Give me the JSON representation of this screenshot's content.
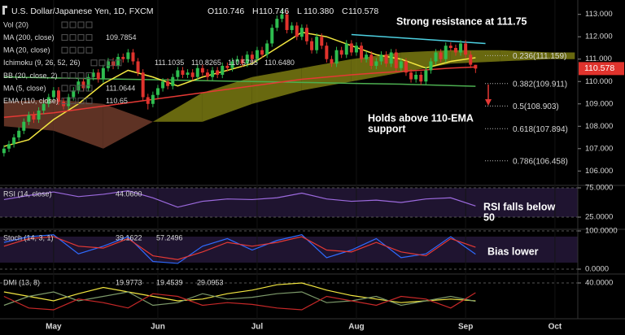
{
  "chart_data": [
    {
      "type": "candlestick",
      "title": "U.S. Dollar/Japanese Yen, 1D, FXCM",
      "ohlc_labels": [
        "O",
        "H",
        "L",
        "C"
      ],
      "last_bar_labels": [
        "110.746",
        "110.746",
        "110.380",
        "110.578"
      ],
      "up_color": "#2ebd4f",
      "down_color": "#e0332d",
      "open": [
        106.8,
        107.0,
        107.2,
        107.5,
        107.8,
        108.2,
        108.5,
        108.3,
        108.7,
        109.0,
        109.3,
        109.6,
        109.1,
        108.9,
        109.3,
        109.6,
        110.0,
        109.7,
        110.2,
        110.4,
        110.1,
        110.6,
        110.9,
        110.7,
        111.1,
        111.0,
        111.3,
        110.9,
        110.4,
        109.3,
        109.0,
        109.4,
        109.7,
        110.0,
        109.8,
        110.2,
        110.5,
        110.3,
        110.4,
        110.2,
        110.6,
        110.4,
        110.2,
        110.5,
        110.3,
        110.7,
        110.6,
        110.9,
        111.0,
        110.8,
        111.2,
        111.0,
        111.4,
        111.2,
        111.7,
        112.4,
        112.8,
        113.0,
        112.3,
        112.5,
        112.0,
        112.4,
        111.8,
        111.4,
        112.0,
        111.6,
        111.0,
        110.8,
        111.4,
        111.2,
        111.7,
        111.3,
        111.6,
        111.0,
        111.2,
        110.7,
        110.9,
        111.2,
        110.8,
        111.3,
        110.6,
        110.9,
        110.4,
        110.1,
        110.3,
        110.0,
        110.5,
        110.9,
        111.3,
        111.0,
        111.6,
        111.5,
        111.3,
        111.7,
        111.2,
        110.746
      ],
      "high": [
        107.15,
        107.35,
        107.65,
        107.95,
        108.35,
        108.65,
        108.65,
        108.85,
        109.15,
        109.45,
        109.75,
        109.75,
        109.25,
        109.45,
        109.75,
        110.15,
        110.15,
        110.35,
        110.55,
        110.55,
        110.75,
        111.05,
        111.05,
        111.25,
        111.25,
        111.45,
        111.45,
        111.05,
        110.55,
        109.45,
        109.55,
        109.85,
        110.15,
        110.15,
        110.35,
        110.65,
        110.65,
        110.55,
        110.55,
        110.75,
        110.75,
        110.55,
        110.65,
        110.65,
        110.85,
        110.85,
        111.05,
        111.15,
        111.15,
        111.35,
        111.35,
        111.55,
        111.55,
        111.85,
        112.55,
        112.95,
        113.2,
        113.15,
        112.65,
        112.65,
        112.55,
        112.55,
        111.95,
        112.15,
        112.15,
        111.75,
        111.15,
        111.55,
        111.55,
        111.85,
        111.85,
        111.75,
        111.75,
        111.35,
        111.35,
        111.05,
        111.35,
        111.35,
        111.45,
        111.45,
        111.05,
        111.05,
        110.55,
        110.45,
        110.45,
        110.65,
        111.05,
        111.45,
        111.45,
        111.75,
        111.75,
        111.65,
        111.85,
        111.85,
        111.35,
        110.746
      ],
      "low": [
        106.65,
        106.85,
        107.05,
        107.35,
        107.65,
        108.05,
        108.15,
        108.15,
        108.55,
        108.85,
        109.15,
        108.95,
        108.75,
        108.75,
        109.15,
        109.45,
        109.55,
        109.55,
        110.05,
        109.95,
        109.95,
        110.45,
        110.55,
        110.55,
        110.85,
        110.85,
        110.75,
        110.25,
        109.15,
        108.75,
        108.85,
        109.25,
        109.55,
        109.65,
        109.65,
        110.05,
        110.15,
        110.15,
        110.05,
        110.05,
        110.25,
        110.05,
        110.05,
        110.15,
        110.15,
        110.45,
        110.45,
        110.75,
        110.65,
        110.65,
        110.85,
        110.85,
        111.05,
        111.05,
        111.55,
        112.25,
        112.65,
        112.15,
        112.15,
        111.85,
        111.85,
        111.65,
        111.25,
        111.25,
        111.45,
        110.85,
        110.65,
        110.65,
        111.05,
        111.05,
        111.15,
        111.15,
        110.85,
        110.85,
        110.55,
        110.55,
        110.75,
        110.65,
        110.65,
        110.45,
        110.45,
        110.25,
        109.95,
        109.95,
        109.85,
        109.85,
        110.35,
        110.75,
        110.85,
        110.85,
        111.35,
        111.15,
        111.15,
        111.05,
        110.6,
        110.38
      ],
      "close": [
        107.0,
        107.2,
        107.5,
        107.8,
        108.2,
        108.5,
        108.3,
        108.7,
        109.0,
        109.3,
        109.6,
        109.1,
        108.9,
        109.3,
        109.6,
        110.0,
        109.7,
        110.2,
        110.4,
        110.1,
        110.6,
        110.9,
        110.7,
        111.1,
        111.0,
        111.3,
        110.9,
        110.4,
        109.3,
        109.0,
        109.4,
        109.7,
        110.0,
        109.8,
        110.2,
        110.5,
        110.3,
        110.4,
        110.2,
        110.6,
        110.4,
        110.2,
        110.5,
        110.3,
        110.7,
        110.6,
        110.9,
        111.0,
        110.8,
        111.2,
        111.0,
        111.4,
        111.2,
        111.7,
        112.4,
        112.8,
        113.0,
        112.3,
        112.5,
        112.0,
        112.4,
        111.8,
        111.4,
        112.0,
        111.6,
        111.0,
        110.8,
        111.4,
        111.2,
        111.7,
        111.3,
        111.6,
        111.0,
        111.2,
        110.7,
        110.9,
        111.2,
        110.8,
        111.3,
        110.6,
        110.9,
        110.4,
        110.1,
        110.3,
        110.0,
        110.5,
        110.9,
        111.3,
        111.0,
        111.6,
        111.5,
        111.3,
        111.7,
        111.2,
        110.75,
        110.578
      ],
      "xlim": [
        -0.8,
        115.6
      ],
      "xticks": [
        {
          "value": 10,
          "label": "May"
        },
        {
          "value": 31,
          "label": "Jun"
        },
        {
          "value": 51,
          "label": "Jul"
        },
        {
          "value": 71,
          "label": "Aug"
        },
        {
          "value": 93,
          "label": "Sep"
        },
        {
          "value": 111,
          "label": "Oct"
        }
      ],
      "ylim": [
        105.43,
        113.57
      ],
      "yticks": [
        {
          "value": 113,
          "label": "113.000"
        },
        {
          "value": 112,
          "label": "112.000"
        },
        {
          "value": 111,
          "label": "111.000"
        },
        {
          "value": 110,
          "label": "110.000"
        },
        {
          "value": 109,
          "label": "109.000"
        },
        {
          "value": 108,
          "label": "108.000"
        },
        {
          "value": 107,
          "label": "107.000"
        },
        {
          "value": 106,
          "label": "106.000"
        }
      ],
      "legend_rows": [
        {
          "name": "Vol (20)"
        },
        {
          "name": "MA (200, close)",
          "line": {
            "color": "#4caf50",
            "x": [
              0,
              5,
              10,
              15,
              20,
              25,
              30,
              35,
              40,
              45,
              50,
              55,
              60,
              65,
              70,
              75,
              80,
              85,
              90,
              95
            ],
            "values": [
              110.2,
              110.18,
              110.16,
              110.14,
              110.12,
              110.1,
              110.08,
              110.06,
              110.04,
              110.02,
              110.0,
              109.98,
              109.96,
              109.94,
              109.92,
              109.9,
              109.88,
              109.85,
              109.82,
              109.7854
            ]
          }
        },
        {
          "name": "MA (20, close)"
        },
        {
          "name": "Ichimoku (9, 26, 52, 26)",
          "labels": [
            {
              "text": "111.1035",
              "color": "#2196f3"
            },
            {
              "text": "110.8265",
              "color": "#e57373"
            },
            {
              "text": "110.5785",
              "color": "#81c784"
            },
            {
              "text": "110.6480",
              "color": "#e57373"
            }
          ],
          "cloud": {
            "x": [
              0,
              10,
              20,
              30,
              40,
              50,
              60,
              70,
              80,
              90,
              100,
              110,
              115
            ],
            "span_a": [
              108.0,
              107.8,
              107.0,
              108.2,
              109.5,
              110.2,
              110.6,
              111.0,
              111.3,
              111.4,
              111.4,
              111.3,
              111.3
            ],
            "span_b": [
              109.1,
              109.2,
              109.0,
              108.2,
              108.2,
              109.0,
              109.6,
              110.0,
              110.4,
              110.8,
              110.9,
              111.0,
              111.0
            ],
            "up_color": "#7a7a12",
            "down_color": "#6e3b2a"
          }
        },
        {
          "name": "BB (20, close, 2)"
        },
        {
          "name": "MA (5, close)",
          "line": {
            "color": "#f2e640",
            "x": [
              0,
              5,
              10,
              15,
              20,
              25,
              30,
              35,
              40,
              45,
              50,
              55,
              60,
              65,
              70,
              75,
              80,
              85,
              90,
              95
            ],
            "values": [
              107.1,
              107.4,
              108.3,
              109.0,
              109.9,
              110.5,
              110.2,
              109.8,
              110.2,
              110.5,
              110.8,
              111.5,
              112.2,
              112.0,
              111.6,
              111.2,
              111.0,
              110.6,
              110.9,
              111.0644
            ]
          }
        },
        {
          "name": "EMA (110, close)",
          "line": {
            "color": "#e53935",
            "x": [
              0,
              5,
              10,
              15,
              20,
              25,
              30,
              35,
              40,
              45,
              50,
              55,
              60,
              65,
              70,
              75,
              80,
              85,
              90,
              95
            ],
            "values": [
              108.4,
              108.5,
              108.6,
              108.75,
              108.9,
              109.05,
              109.2,
              109.35,
              109.5,
              109.65,
              109.8,
              109.95,
              110.1,
              110.2,
              110.3,
              110.38,
              110.45,
              110.52,
              110.6,
              110.65
            ]
          }
        }
      ],
      "trendlines": [
        {
          "x": [
            70,
            97
          ],
          "values": [
            112.1,
            111.7
          ],
          "color": "#4dd0e1"
        }
      ],
      "fib_levels": [
        {
          "label": "0.236(111.159)",
          "value": 111.159,
          "color": "#dddddd"
        },
        {
          "label": "0.382(109.911)",
          "value": 109.911,
          "color": "#dddddd"
        },
        {
          "label": "0.5(108.903)",
          "value": 108.903,
          "color": "#4dd0e1"
        },
        {
          "label": "0.618(107.894)",
          "value": 107.894,
          "color": "#dddddd"
        },
        {
          "label": "0.786(106.458)",
          "value": 106.458,
          "color": "#dddddd"
        }
      ],
      "annotations": [
        {
          "lines": [
            "Strong resistance at 111.75"
          ]
        },
        {
          "lines": [
            "Holds above 110-EMA",
            "support"
          ]
        }
      ]
    },
    {
      "type": "line",
      "title": "RSI (14, close)",
      "x": [
        0,
        5,
        10,
        15,
        20,
        25,
        30,
        35,
        40,
        45,
        50,
        55,
        60,
        65,
        70,
        75,
        80,
        85,
        90,
        95
      ],
      "series": [
        {
          "color": "#9c6ade",
          "values": [
            55,
            62,
            68,
            60,
            64,
            70,
            58,
            42,
            52,
            56,
            55,
            58,
            66,
            56,
            52,
            54,
            50,
            56,
            58,
            44.06
          ],
          "value_label": "44.0600"
        }
      ],
      "ylim": [
        4.2,
        79.2
      ],
      "yticks": [
        {
          "value": 75,
          "label": "75.0000"
        },
        {
          "value": 25,
          "label": "25.0000"
        }
      ],
      "annotations": [
        {
          "lines": [
            "RSI falls below",
            "50"
          ]
        }
      ]
    },
    {
      "type": "line",
      "title": "Stoch (14, 3, 1)",
      "x": [
        0,
        5,
        10,
        15,
        20,
        25,
        30,
        35,
        40,
        45,
        50,
        55,
        60,
        65,
        70,
        75,
        80,
        85,
        90,
        95
      ],
      "series": [
        {
          "color": "#2f6bff",
          "values": [
            70,
            85,
            90,
            40,
            60,
            85,
            20,
            15,
            60,
            80,
            50,
            75,
            90,
            30,
            50,
            80,
            30,
            40,
            85,
            39.1622
          ]
        },
        {
          "color": "#e53935",
          "values": [
            60,
            80,
            85,
            60,
            55,
            80,
            35,
            25,
            45,
            70,
            60,
            70,
            85,
            50,
            45,
            70,
            45,
            35,
            80,
            57.2496
          ]
        }
      ],
      "ylim": [
        -12.8,
        104.3
      ],
      "yticks": [
        {
          "value": 100,
          "label": "100.0000"
        },
        {
          "value": 0,
          "label": "0.0000"
        }
      ],
      "annotations": [
        {
          "lines": [
            "Bias lower"
          ]
        }
      ]
    },
    {
      "type": "line",
      "title": "DMI (13, 8)",
      "x": [
        0,
        5,
        10,
        15,
        20,
        25,
        30,
        35,
        40,
        45,
        50,
        55,
        60,
        65,
        70,
        75,
        80,
        85,
        90,
        95
      ],
      "series": [
        {
          "color": "#f2e640",
          "values": [
            30,
            25,
            20,
            28,
            35,
            30,
            25,
            20,
            22,
            28,
            32,
            38,
            40,
            32,
            26,
            22,
            18,
            20,
            22,
            19.9773
          ]
        },
        {
          "color": "#7d9a6a",
          "values": [
            15,
            25,
            30,
            20,
            25,
            30,
            15,
            18,
            28,
            22,
            24,
            28,
            30,
            18,
            20,
            25,
            15,
            20,
            25,
            19.4539
          ]
        },
        {
          "color": "#c62828",
          "values": [
            25,
            12,
            10,
            22,
            18,
            12,
            28,
            25,
            15,
            18,
            16,
            12,
            10,
            25,
            20,
            15,
            25,
            22,
            12,
            29.0953
          ]
        }
      ],
      "ylim": [
        0,
        50
      ],
      "yticks": [
        {
          "value": 40,
          "label": "40.0000"
        }
      ]
    }
  ]
}
